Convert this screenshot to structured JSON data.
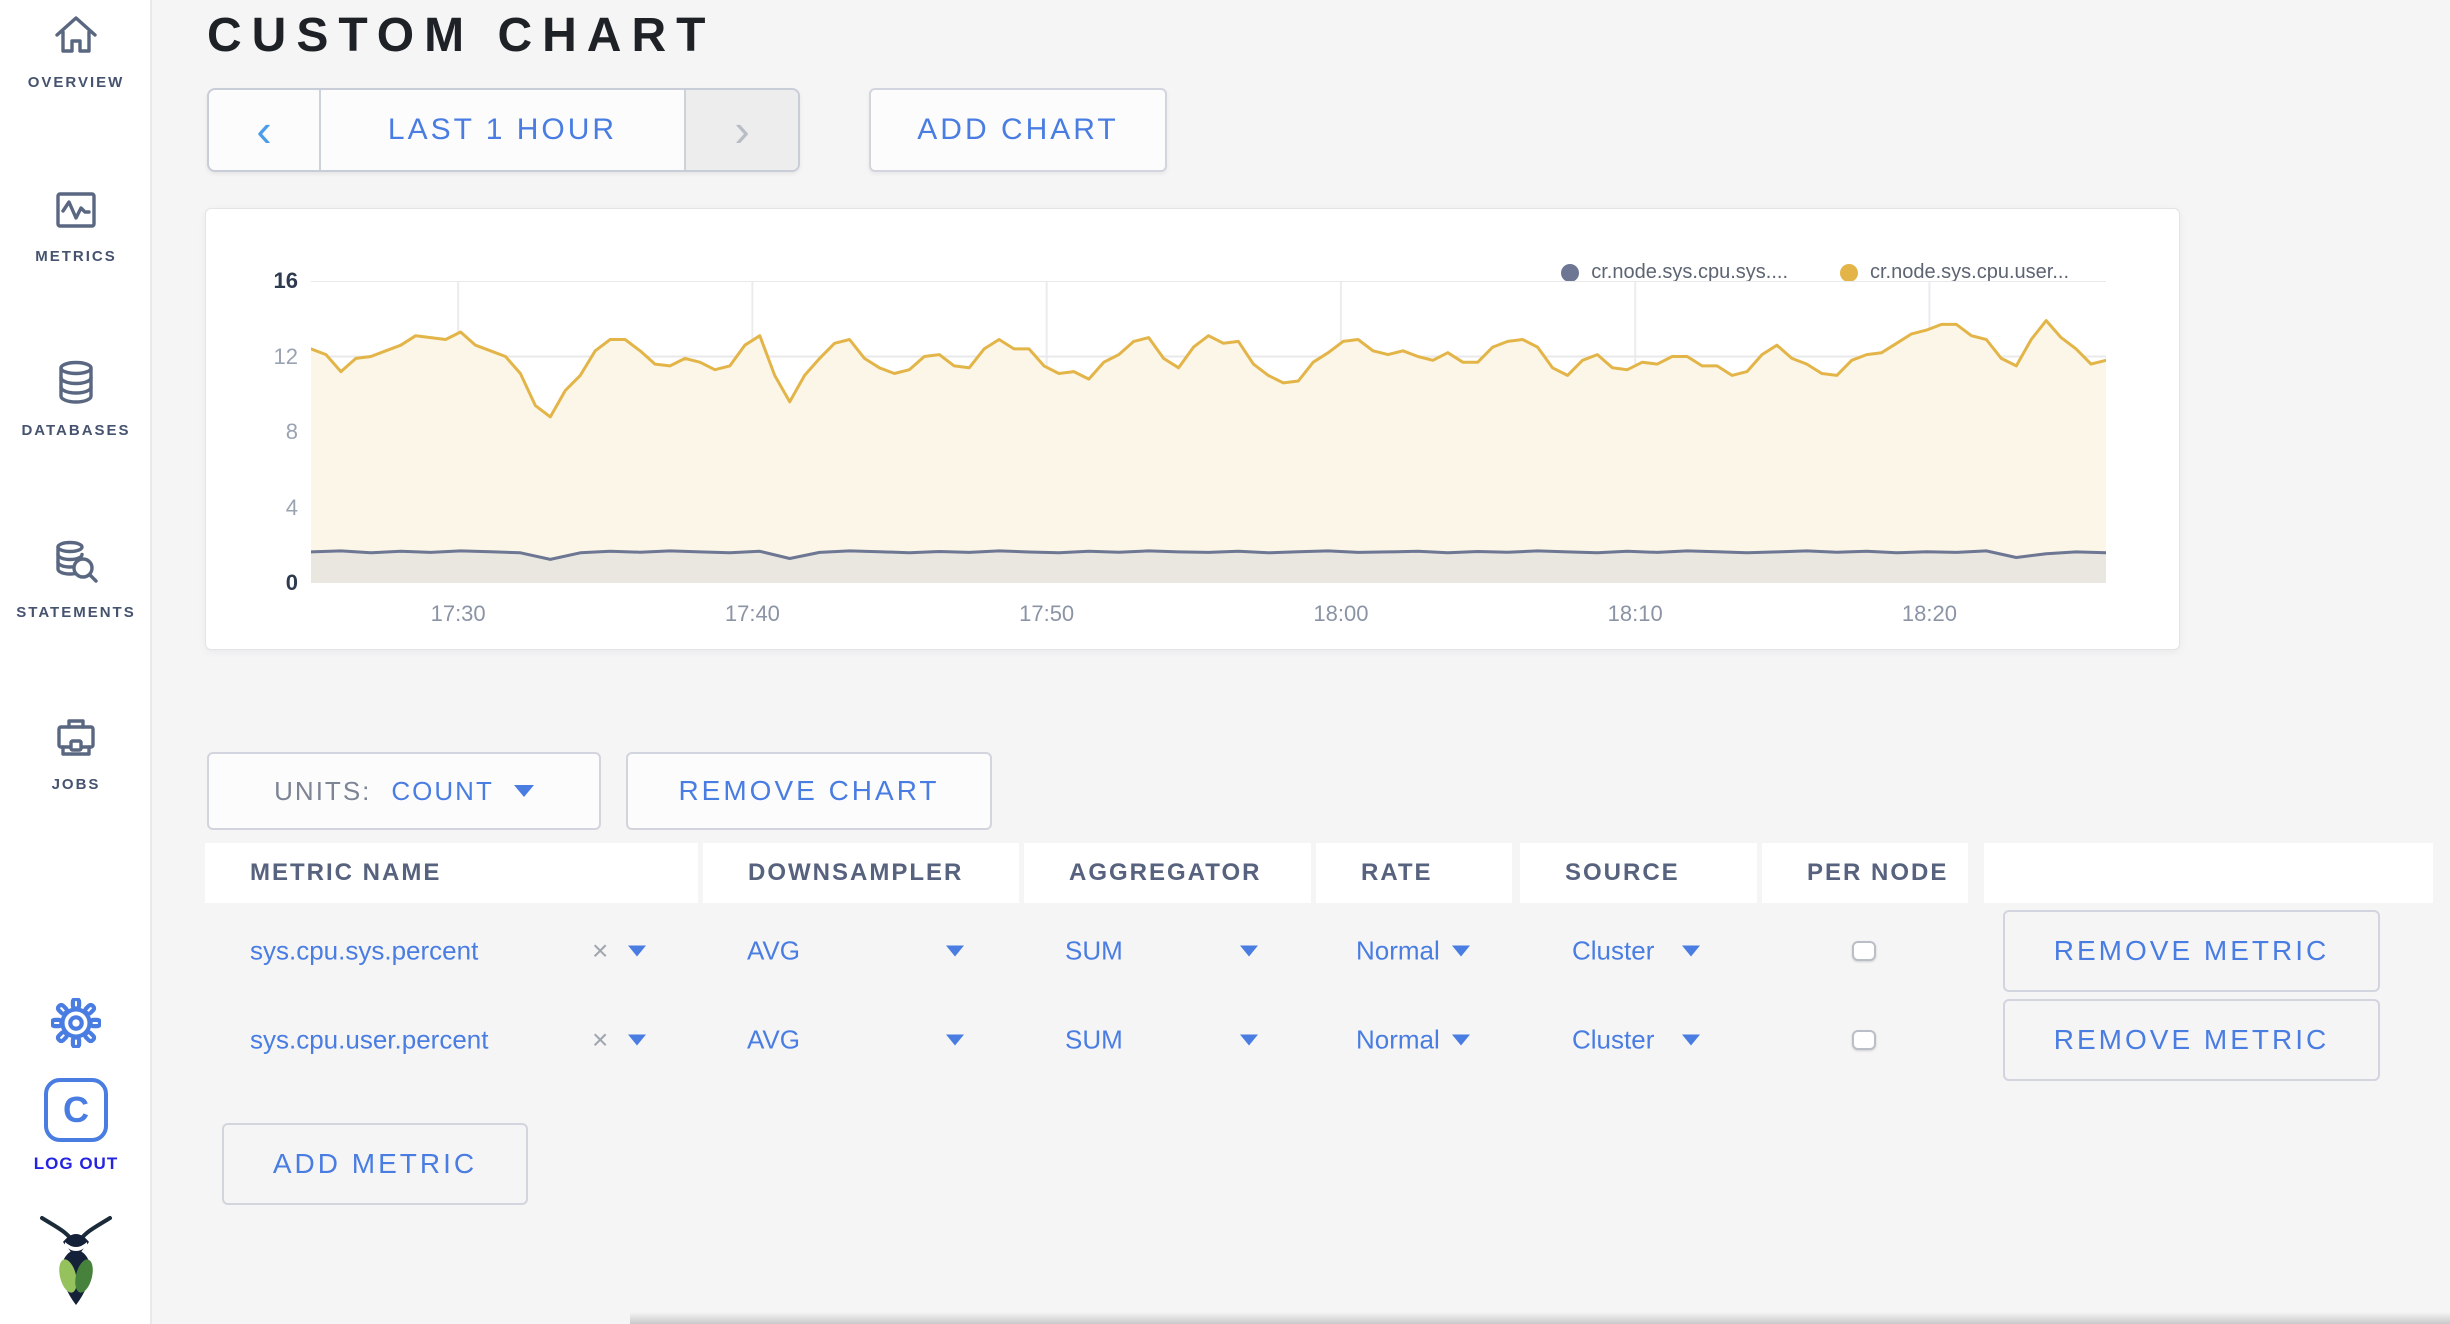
{
  "header": {
    "title": "CUSTOM CHART"
  },
  "sidebar": {
    "items": [
      {
        "label": "OVERVIEW",
        "icon": "home-icon"
      },
      {
        "label": "METRICS",
        "icon": "metrics-graph-icon"
      },
      {
        "label": "DATABASES",
        "icon": "database-icon"
      },
      {
        "label": "STATEMENTS",
        "icon": "database-search-icon"
      },
      {
        "label": "JOBS",
        "icon": "briefcase-icon"
      }
    ],
    "gear_icon": "gear-icon",
    "logout_monogram": "C",
    "logout_label": "LOG OUT",
    "logo_icon": "cockroach-logo"
  },
  "time_controls": {
    "prev_icon": "‹",
    "range_label": "LAST 1 HOUR",
    "next_icon": "›",
    "add_chart_label": "ADD CHART"
  },
  "units_bar": {
    "units_label": "UNITS:",
    "units_value": "COUNT",
    "remove_chart_label": "REMOVE CHART"
  },
  "table": {
    "columns": [
      "METRIC NAME",
      "DOWNSAMPLER",
      "AGGREGATOR",
      "RATE",
      "SOURCE",
      "PER NODE",
      ""
    ],
    "rows": [
      {
        "metric_name": "sys.cpu.sys.percent",
        "clear_icon": "×",
        "downsampler": "AVG",
        "aggregator": "SUM",
        "rate": "Normal",
        "source": "Cluster",
        "per_node_checked": false,
        "remove_label": "REMOVE METRIC"
      },
      {
        "metric_name": "sys.cpu.user.percent",
        "clear_icon": "×",
        "downsampler": "AVG",
        "aggregator": "SUM",
        "rate": "Normal",
        "source": "Cluster",
        "per_node_checked": false,
        "remove_label": "REMOVE METRIC"
      }
    ]
  },
  "add_metric_label": "ADD METRIC",
  "colors": {
    "accent_blue": "#4a7de2",
    "logout_blue": "#2424e0",
    "sidebar_slate": "#46536f",
    "grid_line": "#e9e9eb",
    "axis_strong": "#2e3a50",
    "axis_weak": "#9aa3b2"
  },
  "chart_data": {
    "type": "line",
    "title": "",
    "ylim": [
      0,
      16
    ],
    "y_ticks": [
      0,
      4,
      8,
      12,
      16
    ],
    "x_tick_labels": [
      "17:30",
      "17:40",
      "17:50",
      "18:00",
      "18:10",
      "18:20"
    ],
    "x_tick_positions_min": [
      5,
      15,
      25,
      35,
      45,
      55
    ],
    "x_domain_minutes": 61,
    "grid": true,
    "legend_position": "top-right",
    "series": [
      {
        "name": "cr.node.sys.cpu.sys....",
        "color": "#6d7693",
        "fill": "#e9e7df",
        "values": [
          1.65,
          1.7,
          1.6,
          1.68,
          1.62,
          1.7,
          1.66,
          1.6,
          1.25,
          1.6,
          1.68,
          1.63,
          1.7,
          1.65,
          1.6,
          1.68,
          1.3,
          1.62,
          1.7,
          1.66,
          1.6,
          1.67,
          1.62,
          1.7,
          1.64,
          1.6,
          1.68,
          1.63,
          1.7,
          1.65,
          1.62,
          1.68,
          1.6,
          1.66,
          1.7,
          1.62,
          1.65,
          1.68,
          1.6,
          1.67,
          1.63,
          1.7,
          1.65,
          1.6,
          1.68,
          1.62,
          1.7,
          1.66,
          1.6,
          1.65,
          1.7,
          1.63,
          1.68,
          1.6,
          1.66,
          1.62,
          1.7,
          1.35,
          1.55,
          1.65,
          1.6
        ]
      },
      {
        "name": "cr.node.sys.cpu.user...",
        "color": "#e3b549",
        "fill": "#fbf6e7",
        "values": [
          12.4,
          12.1,
          11.2,
          11.9,
          12.0,
          12.3,
          12.6,
          13.1,
          13.0,
          12.9,
          13.3,
          12.6,
          12.3,
          12.0,
          11.1,
          9.4,
          8.8,
          10.2,
          11.0,
          12.3,
          12.9,
          12.9,
          12.3,
          11.6,
          11.5,
          11.9,
          11.7,
          11.3,
          11.5,
          12.6,
          13.1,
          11.0,
          9.6,
          11.0,
          11.9,
          12.7,
          12.9,
          11.9,
          11.4,
          11.1,
          11.3,
          12.0,
          12.1,
          11.5,
          11.4,
          12.4,
          12.9,
          12.4,
          12.4,
          11.5,
          11.1,
          11.2,
          10.8,
          11.7,
          12.1,
          12.8,
          13.0,
          11.9,
          11.4,
          12.5,
          13.1,
          12.7,
          12.8,
          11.6,
          11.0,
          10.6,
          10.7,
          11.7,
          12.2,
          12.8,
          12.9,
          12.3,
          12.1,
          12.3,
          12.0,
          11.8,
          12.2,
          11.7,
          11.7,
          12.5,
          12.8,
          12.9,
          12.5,
          11.4,
          11.0,
          11.8,
          12.1,
          11.4,
          11.3,
          11.7,
          11.6,
          12.0,
          12.0,
          11.5,
          11.5,
          11.0,
          11.2,
          12.1,
          12.6,
          11.9,
          11.6,
          11.1,
          11.0,
          11.8,
          12.1,
          12.2,
          12.7,
          13.2,
          13.4,
          13.7,
          13.7,
          13.1,
          12.9,
          11.9,
          11.5,
          12.9,
          13.9,
          13.0,
          12.4,
          11.6,
          11.8
        ]
      }
    ]
  }
}
